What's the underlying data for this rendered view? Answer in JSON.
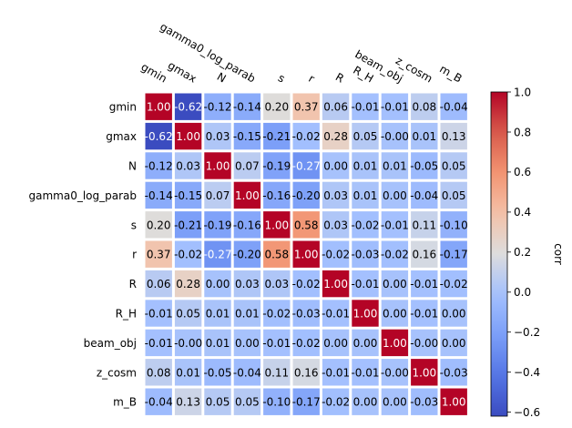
{
  "chart_data": {
    "type": "heatmap",
    "title": "",
    "labels": [
      "gmin",
      "gmax",
      "N",
      "gamma0_log_parab",
      "s",
      "r",
      "R",
      "R_H",
      "beam_obj",
      "z_cosm",
      "m_B"
    ],
    "matrix": [
      [
        1.0,
        -0.62,
        -0.12,
        -0.14,
        0.2,
        0.37,
        0.06,
        -0.01,
        -0.01,
        0.08,
        -0.04
      ],
      [
        -0.62,
        1.0,
        0.03,
        -0.15,
        -0.21,
        -0.02,
        0.28,
        0.05,
        -0.0,
        0.01,
        0.13
      ],
      [
        -0.12,
        0.03,
        1.0,
        0.07,
        -0.19,
        -0.27,
        0.0,
        0.01,
        0.01,
        -0.05,
        0.05
      ],
      [
        -0.14,
        -0.15,
        0.07,
        1.0,
        -0.16,
        -0.2,
        0.03,
        0.01,
        0.0,
        -0.04,
        0.05
      ],
      [
        0.2,
        -0.21,
        -0.19,
        -0.16,
        1.0,
        0.58,
        0.03,
        -0.02,
        -0.01,
        0.11,
        -0.1
      ],
      [
        0.37,
        -0.02,
        -0.27,
        -0.2,
        0.58,
        1.0,
        -0.02,
        -0.03,
        -0.02,
        0.16,
        -0.17
      ],
      [
        0.06,
        0.28,
        0.0,
        0.03,
        0.03,
        -0.02,
        1.0,
        -0.01,
        0.0,
        -0.01,
        -0.02
      ],
      [
        -0.01,
        0.05,
        0.01,
        0.01,
        -0.02,
        -0.03,
        -0.01,
        1.0,
        0.0,
        -0.01,
        0.0
      ],
      [
        -0.01,
        -0.0,
        0.01,
        0.0,
        -0.01,
        -0.02,
        0.0,
        0.0,
        1.0,
        -0.0,
        0.0
      ],
      [
        0.08,
        0.01,
        -0.05,
        -0.04,
        0.11,
        0.16,
        -0.01,
        -0.01,
        -0.0,
        1.0,
        -0.03
      ],
      [
        -0.04,
        0.13,
        0.05,
        0.05,
        -0.1,
        -0.17,
        -0.02,
        0.0,
        0.0,
        -0.03,
        1.0
      ]
    ],
    "colorbar": {
      "label": "corr",
      "vmin": -0.62,
      "vmax": 1.0,
      "ticks": [
        -0.6,
        -0.4,
        -0.2,
        0.0,
        0.2,
        0.4,
        0.6,
        0.8,
        1.0
      ],
      "tick_labels": [
        "−0.6",
        "−0.4",
        "−0.2",
        "0.0",
        "0.2",
        "0.4",
        "0.6",
        "0.8",
        "1.0"
      ]
    },
    "colormap": "coolwarm",
    "x_tick_position": "top",
    "grid": false
  }
}
